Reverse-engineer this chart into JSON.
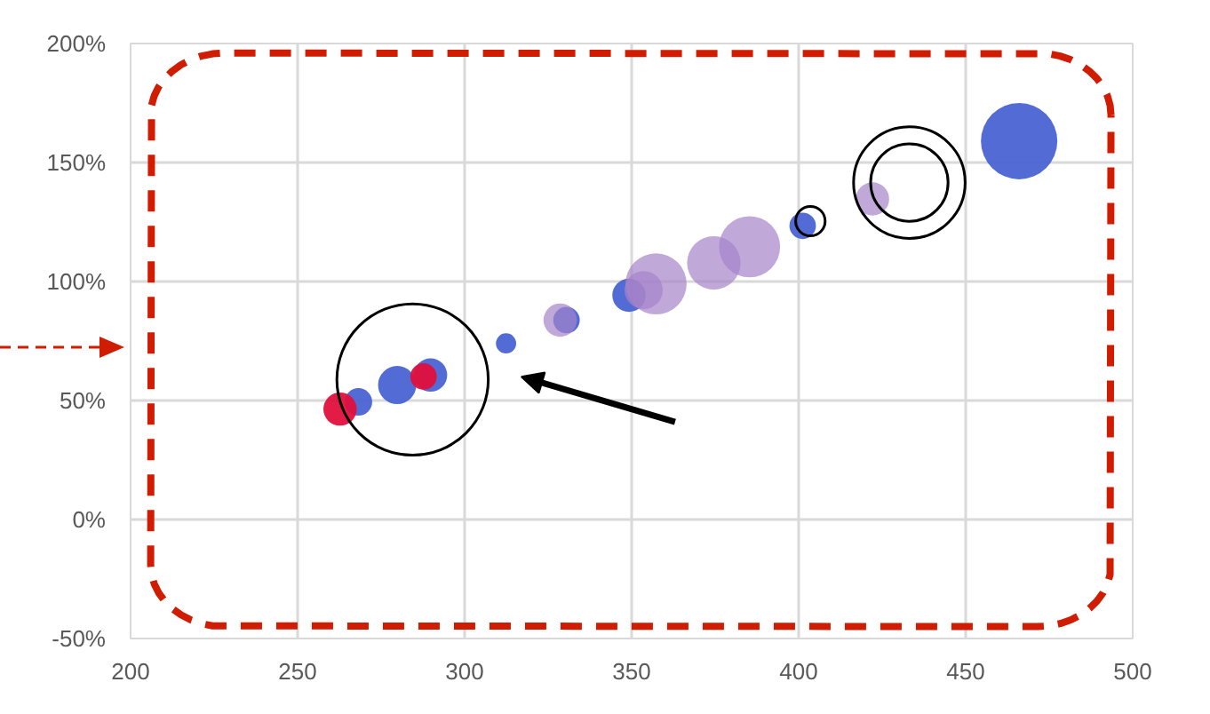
{
  "chart_data": {
    "type": "bubble",
    "series": [
      {
        "color": "#4a63d3",
        "x": [
          268.2,
          279.8,
          289.8,
          312.4,
          330.5,
          349.2,
          401.2,
          466
        ],
        "values": [
          49.4,
          56.5,
          60.7,
          74.0,
          83.8,
          94.2,
          123.4,
          159
        ],
        "sizes": [
          0.13,
          0.25,
          0.19,
          0.07,
          0.12,
          0.19,
          0.12,
          1
        ]
      },
      {
        "color": "#e0103c",
        "x": [
          262.7,
          287.7
        ],
        "values": [
          46.4,
          60.1
        ],
        "sizes": [
          0.19,
          0.12
        ]
      },
      {
        "color": "#a583c9",
        "x": [
          328.6,
          353.6,
          357.3,
          374.6,
          385.3,
          422.1
        ],
        "values": [
          83.8,
          96.4,
          99.0,
          107.8,
          114.6,
          134.7
        ],
        "sizes": [
          0.19,
          0.25,
          0.64,
          0.49,
          0.64,
          0.19
        ]
      }
    ],
    "xlim": [
      200,
      500
    ],
    "xticks": [
      200,
      250,
      300,
      350,
      400,
      450,
      500
    ],
    "ylim": [
      -50,
      200
    ],
    "yticks": [
      {
        "value": -50,
        "label": "-50%"
      },
      {
        "value": 0,
        "label": "0%"
      },
      {
        "value": 50,
        "label": "50%"
      },
      {
        "value": 100,
        "label": "100%"
      },
      {
        "value": 150,
        "label": "150%"
      },
      {
        "value": 200,
        "label": "200%"
      }
    ],
    "grid": true
  }
}
